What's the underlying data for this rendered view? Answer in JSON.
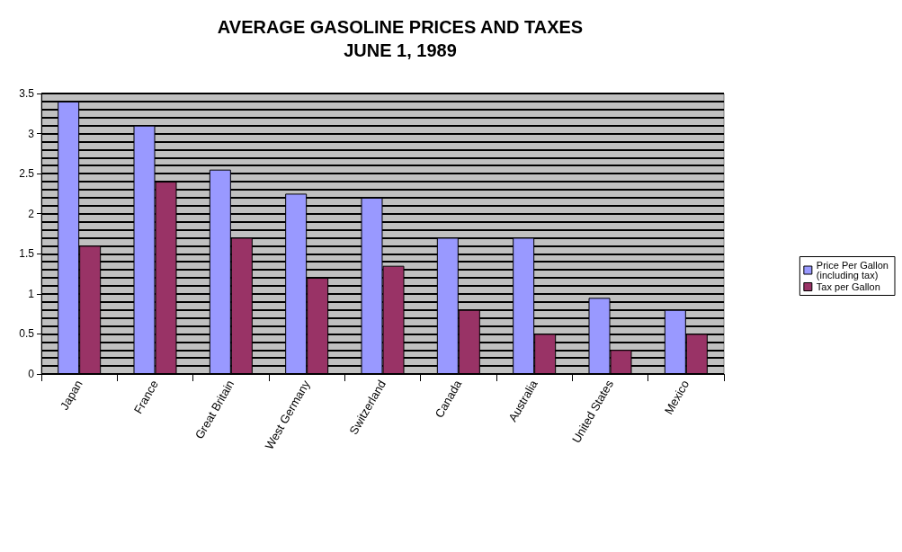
{
  "chart_data": {
    "type": "bar",
    "title": "AVERAGE GASOLINE PRICES AND TAXES",
    "subtitle": "JUNE 1, 1989",
    "categories": [
      "Japan",
      "France",
      "Great Britain",
      "West Germany",
      "Switzerland",
      "Canada",
      "Australia",
      "United States",
      "Mexico"
    ],
    "series": [
      {
        "name": "Price Per Gallon (including tax)",
        "color": "#9999ff",
        "values": [
          3.4,
          3.1,
          2.55,
          2.25,
          2.2,
          1.7,
          1.7,
          0.95,
          0.8
        ]
      },
      {
        "name": "Tax per Gallon",
        "color": "#993366",
        "values": [
          1.6,
          2.4,
          1.7,
          1.2,
          1.35,
          0.8,
          0.5,
          0.3,
          0.5
        ]
      }
    ],
    "ylim": [
      0,
      3.5
    ],
    "yticks": [
      0,
      0.5,
      1,
      1.5,
      2,
      2.5,
      3,
      3.5
    ],
    "grid": "y",
    "legend": "right"
  }
}
